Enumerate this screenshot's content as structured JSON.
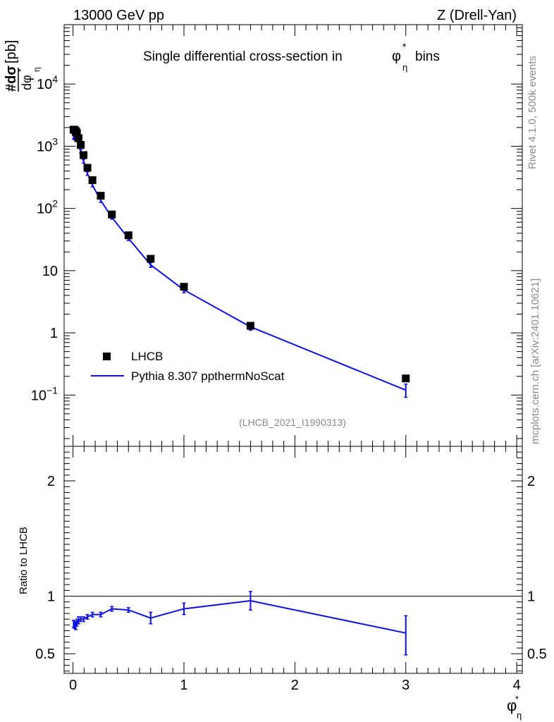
{
  "header": {
    "energy": "13000 GeV pp",
    "process": "Z (Drell-Yan)"
  },
  "side_labels": {
    "rivet": "Rivet 4.1.0,  500k events",
    "mcplots": "mcplots.cern.ch [arXiv:2401.10621]"
  },
  "analysis_id": "(LHCB_2021_I1990313)",
  "chart_data": [
    {
      "type": "scatter",
      "title": "Single differential cross-section in",
      "title_symbol": "φ",
      "title_sup": "*",
      "title_sub": "η",
      "title_tail": "bins",
      "ylabel": {
        "num": "#dσ",
        "den": "dφ",
        "sup": "*",
        "sub": "η",
        "unit": "[pb]"
      },
      "xlabel": {
        "main": "φ",
        "sup": "*",
        "sub": "η"
      },
      "yscale": "log",
      "ylim": [
        0.015,
        90000
      ],
      "xlim": [
        -0.08,
        4.05
      ],
      "y_ticks": [
        {
          "value": 10000,
          "label": "10",
          "exp": "4"
        },
        {
          "value": 1000,
          "label": "10",
          "exp": "3"
        },
        {
          "value": 100,
          "label": "10",
          "exp": "2"
        },
        {
          "value": 10,
          "label": "10",
          "exp": ""
        },
        {
          "value": 1,
          "label": "1",
          "exp": ""
        },
        {
          "value": 0.1,
          "label": "10",
          "exp": "−1"
        }
      ],
      "x_ticks": [
        {
          "value": 0,
          "label": "0"
        },
        {
          "value": 1,
          "label": "1"
        },
        {
          "value": 2,
          "label": "2"
        },
        {
          "value": 3,
          "label": "3"
        },
        {
          "value": 4,
          "label": "4"
        }
      ],
      "legend": {
        "position": "bottom-left",
        "data_label": "LHCB",
        "mc_label": "Pythia 8.307 ppthermNoScat"
      },
      "series": [
        {
          "name": "LHCB",
          "style": "markers",
          "color": "#000000",
          "x": [
            0.005,
            0.015,
            0.025,
            0.035,
            0.05,
            0.07,
            0.095,
            0.13,
            0.175,
            0.25,
            0.35,
            0.5,
            0.7,
            1.0,
            1.6,
            3.0
          ],
          "y": [
            1850,
            1830,
            1750,
            1650,
            1350,
            1050,
            720,
            450,
            285,
            160,
            80,
            37,
            15.5,
            5.5,
            1.3,
            0.185
          ]
        },
        {
          "name": "Pythia 8.307 ppthermNoScat",
          "style": "line",
          "color": "#1010dd",
          "x": [
            0.005,
            0.015,
            0.025,
            0.035,
            0.05,
            0.07,
            0.095,
            0.13,
            0.175,
            0.25,
            0.35,
            0.5,
            0.7,
            1.0,
            1.6,
            3.0
          ],
          "y": [
            1400,
            1360,
            1280,
            1270,
            1070,
            830,
            575,
            365,
            238,
            134,
            72,
            33,
            12.4,
            4.9,
            1.25,
            0.12
          ],
          "y_lo": [
            1310,
            1270,
            1200,
            1190,
            1000,
            775,
            535,
            340,
            222,
            125,
            67,
            30.5,
            11.3,
            4.4,
            1.1,
            0.092
          ],
          "y_hi": [
            1490,
            1450,
            1360,
            1350,
            1140,
            885,
            615,
            390,
            254,
            143,
            77,
            35.5,
            13.5,
            5.4,
            1.4,
            0.15
          ]
        }
      ]
    },
    {
      "type": "line",
      "ylabel": "Ratio to LHCB",
      "ylim": [
        0.33,
        2.3
      ],
      "y_ticks": [
        {
          "value": 0.5,
          "label": "0.5"
        },
        {
          "value": 1,
          "label": "1"
        },
        {
          "value": 2,
          "label": "2"
        }
      ],
      "reference": 1.0,
      "series": [
        {
          "name": "Pythia 8.307 ppthermNoScat / LHCB",
          "color": "#1010dd",
          "x": [
            0.005,
            0.015,
            0.025,
            0.035,
            0.05,
            0.07,
            0.095,
            0.13,
            0.175,
            0.25,
            0.35,
            0.5,
            0.7,
            1.0,
            1.6,
            3.0
          ],
          "y": [
            0.76,
            0.75,
            0.74,
            0.77,
            0.79,
            0.8,
            0.8,
            0.82,
            0.84,
            0.84,
            0.89,
            0.88,
            0.81,
            0.89,
            0.96,
            0.68
          ],
          "y_lo": [
            0.73,
            0.72,
            0.71,
            0.74,
            0.76,
            0.78,
            0.78,
            0.8,
            0.82,
            0.82,
            0.87,
            0.86,
            0.76,
            0.84,
            0.88,
            0.49
          ],
          "y_hi": [
            0.79,
            0.78,
            0.77,
            0.8,
            0.82,
            0.82,
            0.82,
            0.84,
            0.86,
            0.86,
            0.91,
            0.9,
            0.86,
            0.94,
            1.04,
            0.83
          ]
        }
      ]
    }
  ]
}
